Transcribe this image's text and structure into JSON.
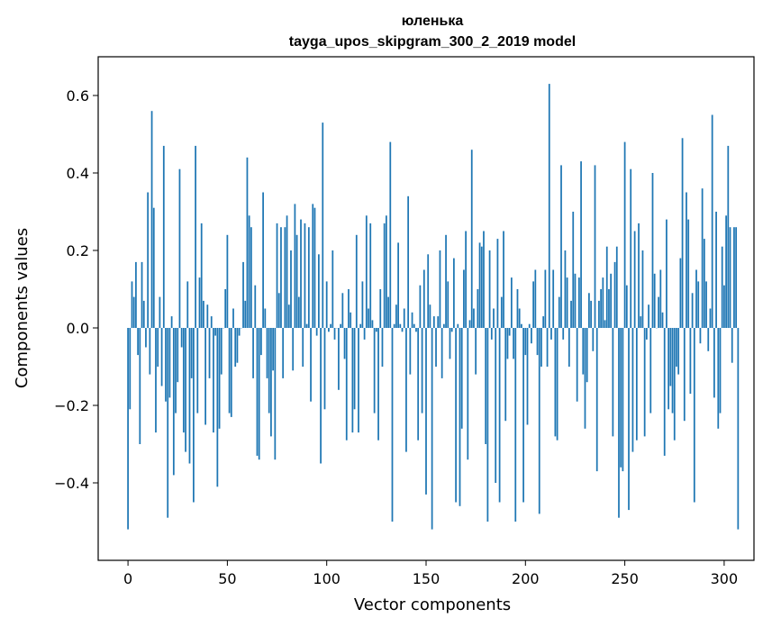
{
  "chart_data": {
    "type": "bar",
    "title_line1": "юленька",
    "title_line2": "tayga_upos_skipgram_300_2_2019 model",
    "xlabel": "Vector components",
    "ylabel": "Components values",
    "xlim": [
      -15,
      315
    ],
    "ylim": [
      -0.6,
      0.7
    ],
    "xticks": [
      0,
      50,
      100,
      150,
      200,
      250,
      300
    ],
    "xtick_labels": [
      "0",
      "50",
      "100",
      "150",
      "200",
      "250",
      "300"
    ],
    "yticks": [
      -0.4,
      -0.2,
      0.0,
      0.2,
      0.4,
      0.6
    ],
    "ytick_labels": [
      "−0.4",
      "−0.2",
      "0.0",
      "0.2",
      "0.4",
      "0.6"
    ],
    "bar_color": "#1f77b4",
    "grid": false,
    "values": [
      -0.52,
      -0.21,
      0.12,
      0.08,
      0.17,
      -0.07,
      -0.3,
      0.17,
      0.07,
      -0.05,
      0.35,
      -0.12,
      0.56,
      0.31,
      -0.27,
      -0.1,
      0.08,
      -0.15,
      0.47,
      -0.19,
      -0.49,
      -0.18,
      0.03,
      -0.38,
      -0.22,
      -0.14,
      0.41,
      -0.05,
      -0.27,
      -0.32,
      0.12,
      -0.35,
      -0.13,
      -0.45,
      0.47,
      -0.22,
      0.13,
      0.27,
      0.07,
      -0.25,
      0.06,
      -0.13,
      0.03,
      -0.27,
      -0.02,
      -0.41,
      -0.26,
      -0.12,
      0.0,
      0.1,
      0.24,
      -0.22,
      -0.23,
      0.05,
      -0.1,
      -0.09,
      -0.02,
      0.0,
      0.17,
      0.07,
      0.44,
      0.29,
      0.26,
      -0.13,
      0.11,
      -0.33,
      -0.34,
      -0.07,
      0.35,
      0.05,
      -0.13,
      -0.22,
      -0.28,
      -0.11,
      -0.34,
      0.27,
      0.09,
      0.26,
      -0.13,
      0.26,
      0.29,
      0.06,
      0.2,
      -0.11,
      0.32,
      0.24,
      0.08,
      0.28,
      -0.1,
      0.27,
      0.01,
      0.26,
      -0.19,
      0.32,
      0.31,
      -0.02,
      0.19,
      -0.35,
      0.53,
      -0.21,
      0.12,
      -0.01,
      0.01,
      0.2,
      -0.03,
      0.0,
      -0.16,
      0.01,
      0.09,
      -0.08,
      -0.29,
      0.1,
      0.04,
      -0.27,
      -0.21,
      0.24,
      -0.27,
      0.01,
      0.12,
      -0.03,
      0.29,
      0.05,
      0.27,
      0.02,
      -0.22,
      -0.01,
      -0.29,
      0.1,
      -0.1,
      0.27,
      0.29,
      0.08,
      0.48,
      -0.5,
      0.01,
      0.06,
      0.22,
      0.01,
      -0.01,
      0.05,
      -0.32,
      0.34,
      -0.12,
      0.04,
      0.01,
      -0.01,
      -0.29,
      0.11,
      -0.22,
      0.15,
      -0.43,
      0.19,
      0.06,
      -0.52,
      0.03,
      -0.1,
      0.03,
      0.2,
      -0.13,
      0.01,
      0.24,
      0.12,
      -0.08,
      -0.01,
      0.18,
      -0.45,
      0.01,
      -0.46,
      -0.26,
      0.15,
      0.25,
      -0.34,
      0.02,
      0.46,
      0.05,
      -0.12,
      0.1,
      0.22,
      0.21,
      0.25,
      -0.3,
      -0.5,
      0.2,
      -0.03,
      0.05,
      -0.4,
      0.23,
      -0.45,
      0.08,
      0.25,
      -0.24,
      -0.08,
      -0.02,
      0.13,
      -0.08,
      -0.5,
      0.1,
      0.05,
      0.01,
      -0.45,
      -0.07,
      -0.25,
      0.01,
      -0.04,
      0.12,
      0.15,
      -0.07,
      -0.48,
      -0.1,
      0.03,
      0.15,
      -0.1,
      0.63,
      -0.03,
      0.15,
      -0.28,
      -0.29,
      0.08,
      0.42,
      -0.03,
      0.2,
      0.13,
      -0.1,
      0.07,
      0.3,
      0.14,
      -0.19,
      0.13,
      0.43,
      -0.12,
      -0.26,
      -0.14,
      0.09,
      0.07,
      -0.06,
      0.42,
      -0.37,
      0.07,
      0.1,
      0.13,
      0.02,
      0.21,
      0.1,
      0.14,
      -0.28,
      0.17,
      0.21,
      -0.49,
      -0.36,
      -0.37,
      0.48,
      0.11,
      -0.47,
      0.41,
      -0.32,
      0.25,
      -0.29,
      0.27,
      0.03,
      0.2,
      -0.28,
      -0.03,
      0.06,
      -0.22,
      0.4,
      0.14,
      0.0,
      0.08,
      0.15,
      0.04,
      -0.33,
      0.28,
      -0.21,
      -0.15,
      -0.22,
      -0.29,
      -0.1,
      -0.12,
      0.18,
      0.49,
      -0.24,
      0.35,
      0.28,
      -0.17,
      0.09,
      -0.45,
      0.15,
      0.12,
      -0.04,
      0.36,
      0.23,
      0.12,
      -0.06,
      0.05,
      0.55,
      -0.18,
      0.3,
      -0.26,
      -0.22,
      0.21,
      0.11,
      0.29,
      0.47,
      0.26,
      -0.09,
      0.26,
      0.26,
      -0.52
    ]
  }
}
